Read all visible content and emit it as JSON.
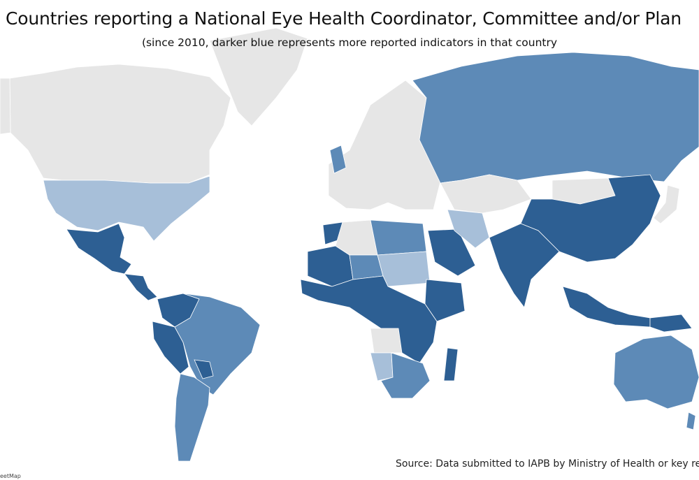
{
  "title": "Countries reporting a National Eye Health Coordinator, Committee and/or Plan",
  "subtitle": "(since 2010, darker blue represents more reported indicators in that country",
  "source": "Source: Data submitted to IAPB by Ministry of Health or key res",
  "attribution": "eetMap",
  "colors": {
    "ocean": "#ffffff",
    "no_data": "#e6e6e6",
    "border": "#ffffff",
    "level_1": "#a7bfd9",
    "level_2": "#5d8ab7",
    "level_3": "#2d5f93"
  },
  "countries": [
    {
      "name": "Canada",
      "level": 0
    },
    {
      "name": "Greenland",
      "level": 0
    },
    {
      "name": "Alaska",
      "level": 0
    },
    {
      "name": "United States",
      "level": 1
    },
    {
      "name": "Mexico",
      "level": 3
    },
    {
      "name": "Central America",
      "level": 3
    },
    {
      "name": "Colombia",
      "level": 3
    },
    {
      "name": "Peru",
      "level": 3
    },
    {
      "name": "Brazil",
      "level": 2
    },
    {
      "name": "Argentina",
      "level": 2
    },
    {
      "name": "Paraguay",
      "level": 3
    },
    {
      "name": "Morocco",
      "level": 3
    },
    {
      "name": "Algeria",
      "level": 0
    },
    {
      "name": "Mali",
      "level": 3
    },
    {
      "name": "Niger",
      "level": 2
    },
    {
      "name": "Egypt",
      "level": 2
    },
    {
      "name": "Sudan",
      "level": 1
    },
    {
      "name": "Ethiopia",
      "level": 3
    },
    {
      "name": "Tanzania",
      "level": 3
    },
    {
      "name": "Angola",
      "level": 0
    },
    {
      "name": "Namibia",
      "level": 1
    },
    {
      "name": "South Africa",
      "level": 2
    },
    {
      "name": "Madagascar",
      "level": 3
    },
    {
      "name": "Saudi Arabia",
      "level": 3
    },
    {
      "name": "Europe",
      "level": 0
    },
    {
      "name": "United Kingdom",
      "level": 2
    },
    {
      "name": "Russia",
      "level": 2
    },
    {
      "name": "Kazakhstan",
      "level": 0
    },
    {
      "name": "Iran",
      "level": 1
    },
    {
      "name": "India",
      "level": 3
    },
    {
      "name": "China",
      "level": 3
    },
    {
      "name": "Mongolia",
      "level": 0
    },
    {
      "name": "Japan",
      "level": 0
    },
    {
      "name": "Indonesia",
      "level": 3
    },
    {
      "name": "Papua New Guinea",
      "level": 3
    },
    {
      "name": "Australia",
      "level": 2
    },
    {
      "name": "New Zealand",
      "level": 2
    }
  ]
}
